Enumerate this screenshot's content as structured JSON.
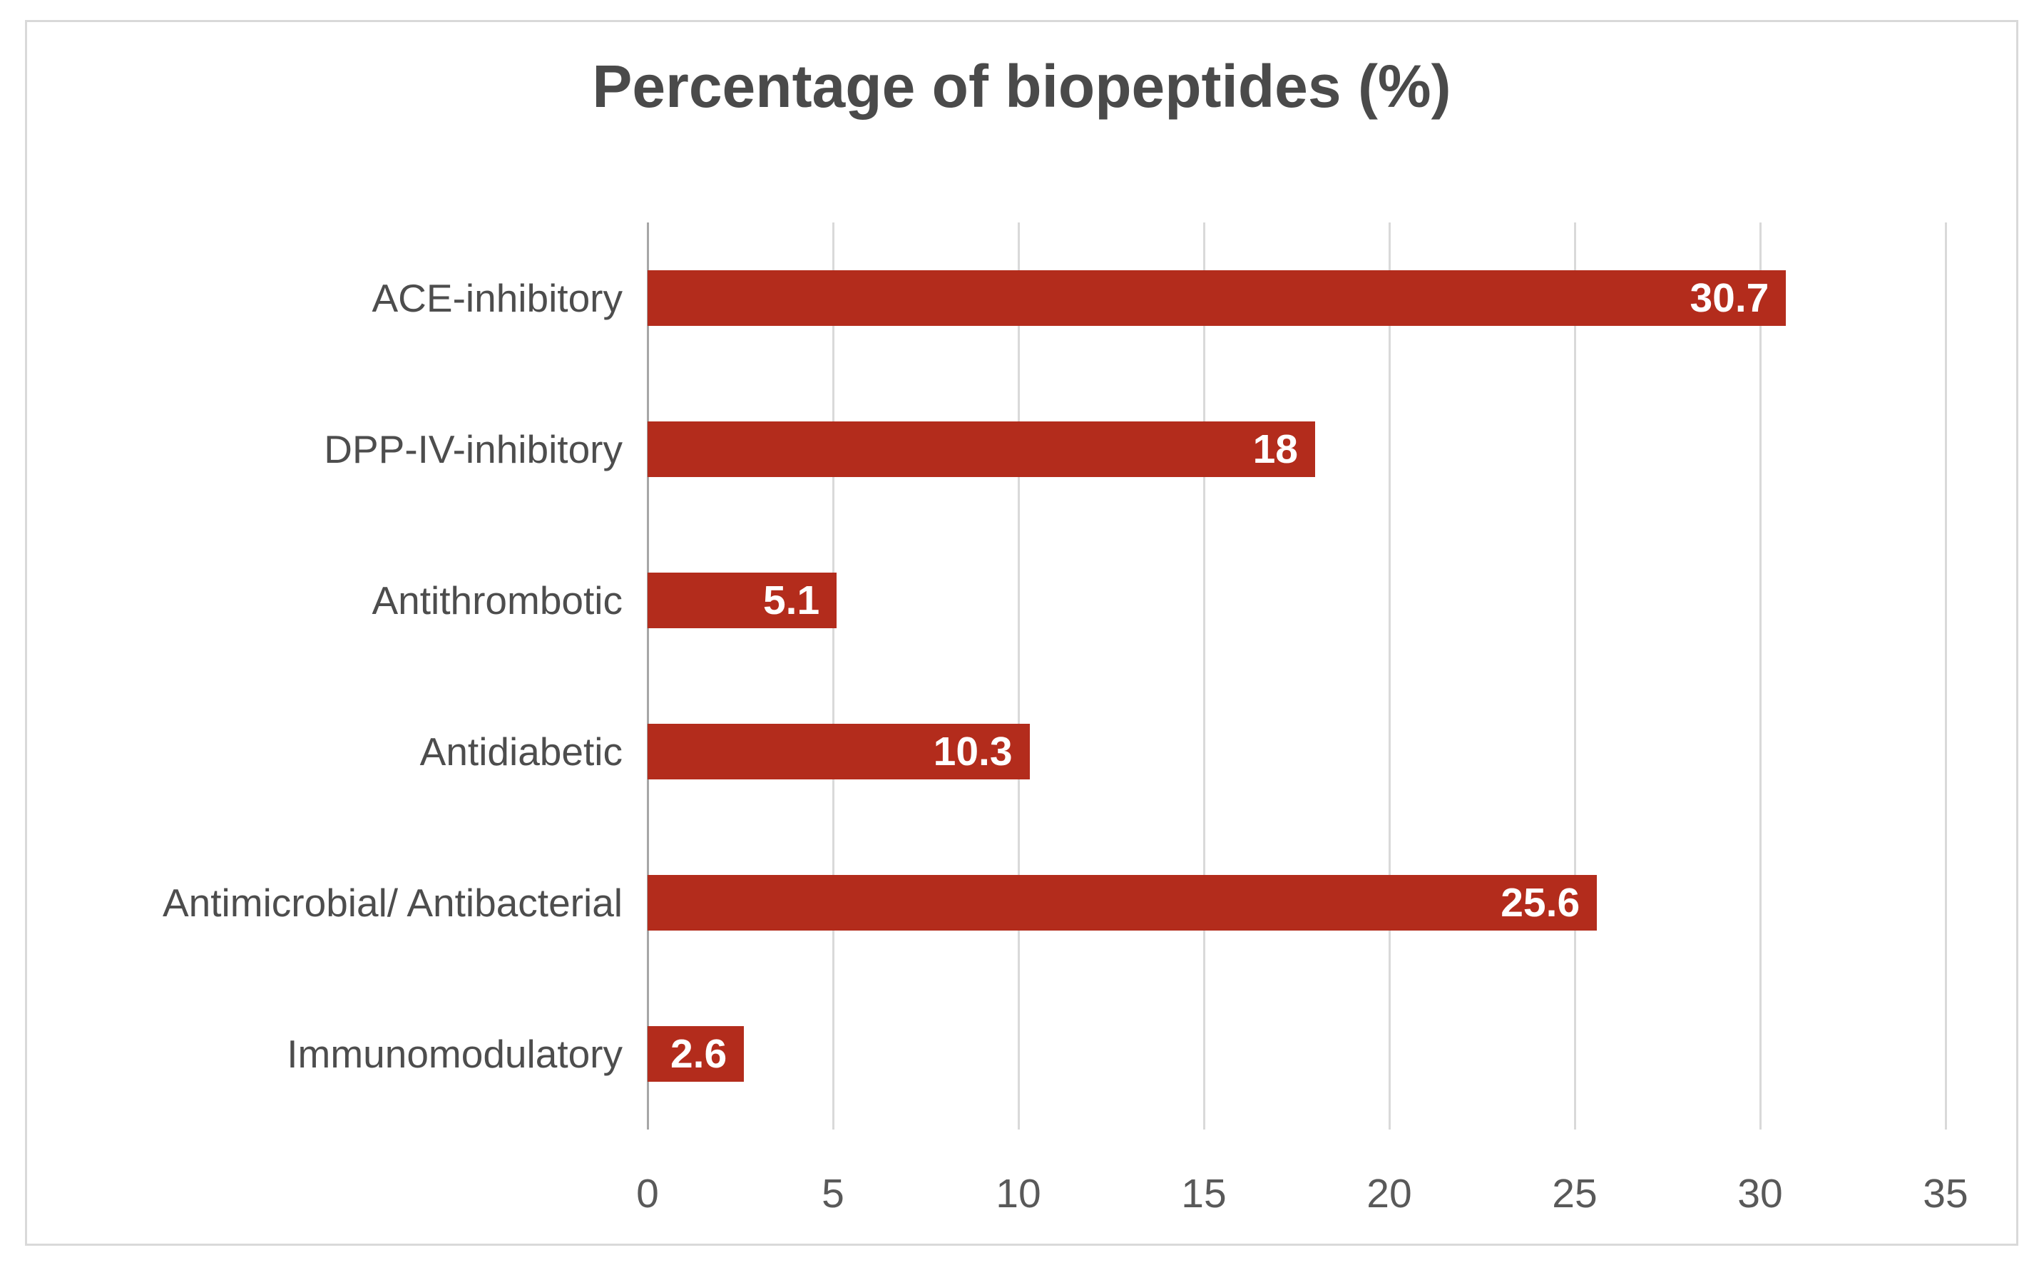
{
  "chart_data": {
    "type": "bar",
    "orientation": "horizontal",
    "title": "Percentage of biopeptides (%)",
    "categories": [
      "ACE-inhibitory",
      "DPP-IV-inhibitory",
      "Antithrombotic",
      "Antidiabetic",
      "Antimicrobial/ Antibacterial",
      "Immunomodulatory"
    ],
    "values": [
      30.7,
      18,
      5.1,
      10.3,
      25.6,
      2.6
    ],
    "value_labels": [
      "30.7",
      "18",
      "5.1",
      "10.3",
      "25.6",
      "2.6"
    ],
    "xlabel": "",
    "ylabel": "",
    "xlim": [
      0,
      35
    ],
    "x_ticks": [
      0,
      5,
      10,
      15,
      20,
      25,
      30,
      35
    ],
    "grid": "vertical-gridlines-on",
    "legend": "none",
    "colors": {
      "bar": "#b32c1c",
      "value_label": "#ffffff",
      "title": "#4a4a4a",
      "category_label": "#4d4d4d",
      "tick_label": "#595959",
      "gridline": "#d9d9d9",
      "zero_axis": "#a6a6a6",
      "frame_border": "#d9d9d9",
      "background": "#ffffff"
    }
  }
}
